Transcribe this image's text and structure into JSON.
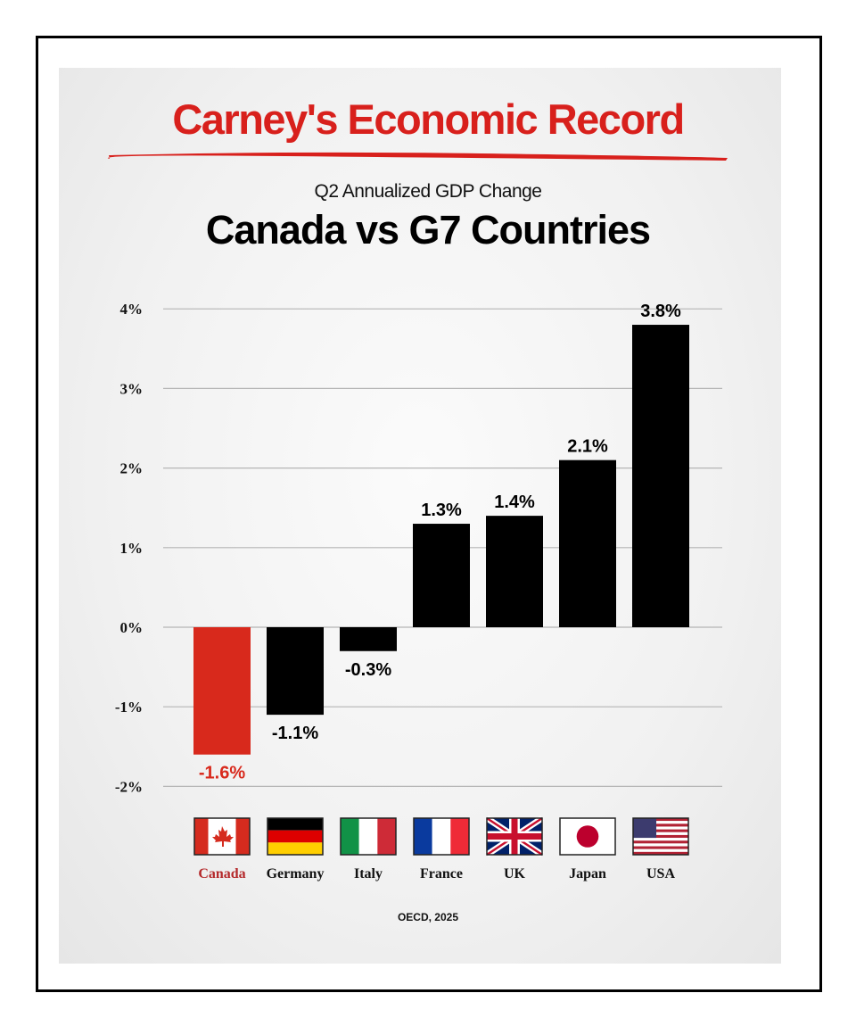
{
  "header": {
    "title": "Carney's Economic Record",
    "subtitle": "Q2 Annualized GDP Change",
    "headline": "Canada vs G7 Countries"
  },
  "source": "OECD, 2025",
  "colors": {
    "highlight": "#d8291c",
    "bar": "#000000",
    "title": "#d8201c"
  },
  "chart_data": {
    "type": "bar",
    "title": "Canada vs G7 Countries",
    "subtitle": "Q2 Annualized GDP Change",
    "categories": [
      "Canada",
      "Germany",
      "Italy",
      "France",
      "UK",
      "Japan",
      "USA"
    ],
    "values": [
      -1.6,
      -1.1,
      -0.3,
      1.3,
      1.4,
      2.1,
      3.8
    ],
    "data_labels": [
      "-1.6%",
      "-1.1%",
      "-0.3%",
      "1.3%",
      "1.4%",
      "2.1%",
      "3.8%"
    ],
    "highlight": "Canada",
    "flags": [
      "canada-flag",
      "germany-flag",
      "italy-flag",
      "france-flag",
      "uk-flag",
      "japan-flag",
      "usa-flag"
    ],
    "ylim": [
      -2,
      4
    ],
    "yticks": [
      4,
      3,
      2,
      1,
      0,
      -1,
      -2
    ],
    "ytick_labels": [
      "4%",
      "3%",
      "2%",
      "1%",
      "0%",
      "-1%",
      "-2%"
    ],
    "xlabel": "",
    "ylabel": "",
    "grid": true,
    "legend": "none"
  }
}
